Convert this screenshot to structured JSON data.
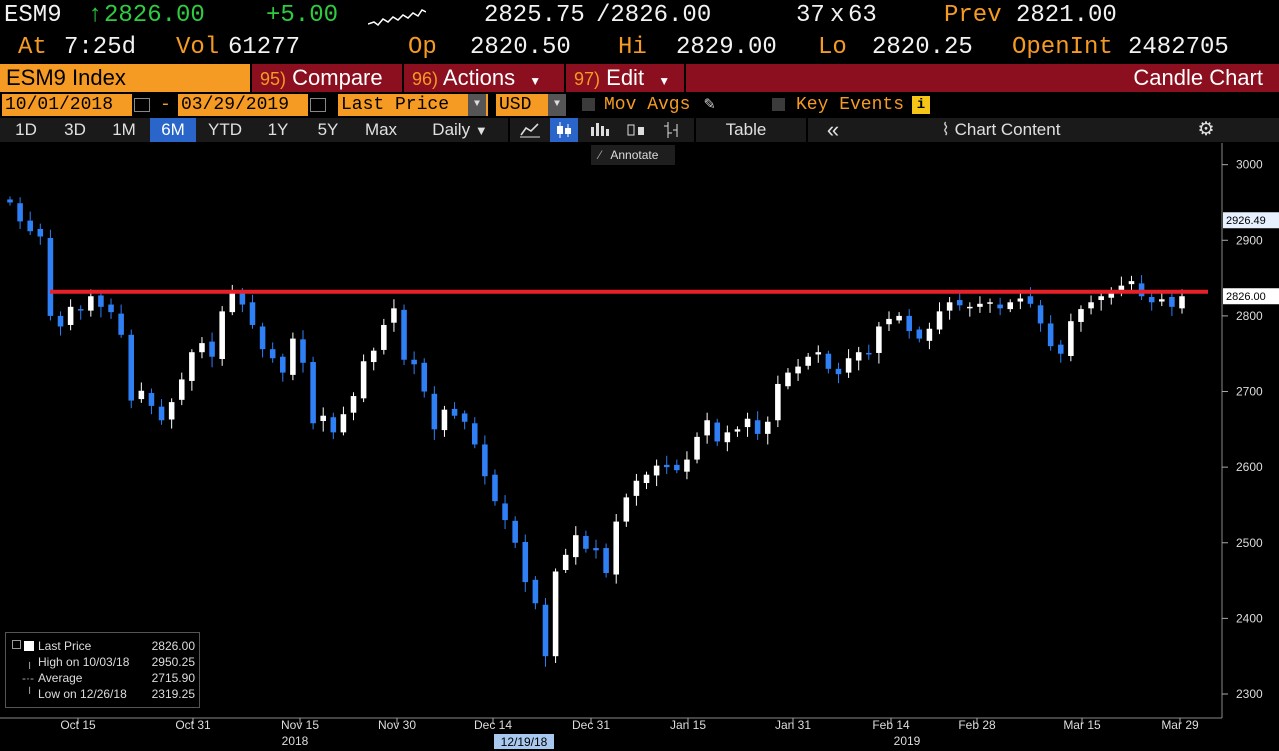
{
  "quote": {
    "ticker": "ESM9",
    "last": "2826.00",
    "change": "+5.00",
    "bid": "2825.75",
    "ask": "/2826.00",
    "size_bid": "37",
    "size_x": "x",
    "size_ask": "63",
    "prev_label": "Prev",
    "prev": "2821.00",
    "at_label": "At",
    "time": "7:25d",
    "vol_label": "Vol",
    "volume": "61277",
    "open_label": "Op",
    "open": "2820.50",
    "hi_label": "Hi",
    "high": "2829.00",
    "lo_label": "Lo",
    "low": "2820.25",
    "oi_label": "OpenInt",
    "open_interest": "2482705"
  },
  "toolbar": {
    "security": "ESM9 Index",
    "compare_num": "95)",
    "compare": "Compare",
    "actions_num": "96)",
    "actions": "Actions",
    "edit_num": "97)",
    "edit": "Edit",
    "chart_type": "Candle Chart"
  },
  "params": {
    "start_date": "10/01/2018",
    "dash": "-",
    "end_date": "03/29/2019",
    "field": "Last Price",
    "currency": "USD",
    "mov_avgs": "Mov Avgs",
    "key_events": "Key Events"
  },
  "periods": [
    "1D",
    "3D",
    "1M",
    "6M",
    "YTD",
    "1Y",
    "5Y",
    "Max"
  ],
  "active_period": "6M",
  "frequency": "Daily",
  "table_label": "Table",
  "chart_content_label": "Chart Content",
  "annotate_label": "Annotate",
  "colors": {
    "accent": "#f59a23",
    "toolbar": "#8b0f1e",
    "candle_down": "#2f7ff5",
    "candle_up": "#ffffff",
    "hline": "#e8202a"
  },
  "chart_data": {
    "type": "candlestick",
    "ylim": [
      2290,
      3010
    ],
    "y_ticks": [
      "3000",
      "2900",
      "2800",
      "2700",
      "2600",
      "2500",
      "2400",
      "2300"
    ],
    "x_ticks": [
      "Oct 15",
      "Oct 31",
      "Nov 15",
      "Nov 30",
      "Dec 14",
      "Dec 31",
      "Jan 15",
      "Jan 31",
      "Feb 14",
      "Feb 28",
      "Mar 15",
      "Mar 29"
    ],
    "year_labels": [
      "2018",
      "2019"
    ],
    "crosshair_date": "12/19/18",
    "hline_value": 2832,
    "price_tags": [
      "2926.49",
      "2826.00"
    ],
    "closes": [
      2950,
      2925,
      2912,
      2905,
      2800,
      2786,
      2812,
      2808,
      2826,
      2812,
      2805,
      2775,
      2688,
      2701,
      2681,
      2662,
      2686,
      2716,
      2752,
      2764,
      2746,
      2806,
      2830,
      2815,
      2788,
      2756,
      2744,
      2725,
      2770,
      2738,
      2658,
      2668,
      2646,
      2670,
      2694,
      2740,
      2754,
      2788,
      2810,
      2742,
      2736,
      2700,
      2650,
      2676,
      2668,
      2660,
      2630,
      2588,
      2555,
      2530,
      2500,
      2448,
      2420,
      2350,
      2462,
      2484,
      2510,
      2492,
      2490,
      2460,
      2528,
      2560,
      2582,
      2590,
      2602,
      2600,
      2596,
      2610,
      2640,
      2662,
      2634,
      2646,
      2650,
      2664,
      2644,
      2660,
      2710,
      2725,
      2733,
      2746,
      2752,
      2730,
      2723,
      2744,
      2752,
      2750,
      2786,
      2796,
      2800,
      2780,
      2770,
      2783,
      2806,
      2818,
      2814,
      2812,
      2816,
      2818,
      2810,
      2818,
      2823,
      2816,
      2790,
      2760,
      2750,
      2793,
      2809,
      2818,
      2826,
      2830,
      2840,
      2846,
      2826,
      2818,
      2822,
      2812,
      2826
    ]
  },
  "legend": {
    "last_label": "Last Price",
    "last_value": "2826.00",
    "high_label": "High on 10/03/18",
    "high_value": "2950.25",
    "avg_label": "Average",
    "avg_value": "2715.90",
    "low_label": "Low on 12/26/18",
    "low_value": "2319.25"
  }
}
